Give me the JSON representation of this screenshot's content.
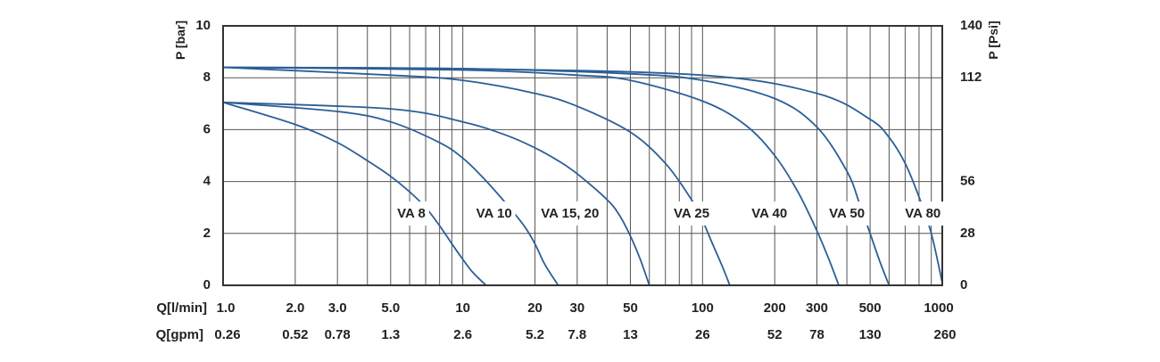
{
  "chart_data": {
    "type": "line",
    "x_scale": "log",
    "x_unit_label": "Q[l/min]",
    "x2_unit_label": "Q[gpm]",
    "y_label": "P [bar]",
    "y2_label": "P [Psi]",
    "xlim": [
      1,
      1000
    ],
    "ylim": [
      0,
      10
    ],
    "grid": true,
    "x_ticks": [
      {
        "value": 1,
        "label": "1.0",
        "label2": "0.26"
      },
      {
        "value": 2,
        "label": "2.0",
        "label2": "0.52"
      },
      {
        "value": 3,
        "label": "3.0",
        "label2": "0.78"
      },
      {
        "value": 5,
        "label": "5.0",
        "label2": "1.3"
      },
      {
        "value": 10,
        "label": "10",
        "label2": "2.6"
      },
      {
        "value": 20,
        "label": "20",
        "label2": "5.2"
      },
      {
        "value": 30,
        "label": "30",
        "label2": "7.8"
      },
      {
        "value": 50,
        "label": "50",
        "label2": "13"
      },
      {
        "value": 100,
        "label": "100",
        "label2": "26"
      },
      {
        "value": 200,
        "label": "200",
        "label2": "52"
      },
      {
        "value": 300,
        "label": "300",
        "label2": "78"
      },
      {
        "value": 500,
        "label": "500",
        "label2": "130"
      },
      {
        "value": 1000,
        "label": "1000",
        "label2": "260"
      }
    ],
    "y_ticks": [
      {
        "value": 0,
        "label": "0"
      },
      {
        "value": 2,
        "label": "2"
      },
      {
        "value": 4,
        "label": "4"
      },
      {
        "value": 6,
        "label": "6"
      },
      {
        "value": 8,
        "label": "8"
      },
      {
        "value": 10,
        "label": "10"
      }
    ],
    "y2_ticks": [
      {
        "value": 0,
        "label": "0"
      },
      {
        "value": 2,
        "label": "28"
      },
      {
        "value": 4,
        "label": "56"
      },
      {
        "value": 8,
        "label": "112"
      },
      {
        "value": 10,
        "label": "140"
      }
    ],
    "series": [
      {
        "name": "VA 8",
        "label_at": [
          6.1,
          2.75
        ],
        "x": [
          1,
          2,
          3,
          4,
          5,
          6,
          7,
          8,
          9,
          10,
          11,
          12.5
        ],
        "y": [
          7.05,
          6.2,
          5.5,
          4.8,
          4.2,
          3.6,
          3.0,
          2.3,
          1.6,
          1.0,
          0.5,
          0
        ]
      },
      {
        "name": "VA 10",
        "label_at": [
          13.5,
          2.75
        ],
        "x": [
          1,
          3,
          5,
          8,
          10,
          12,
          15,
          18,
          20,
          22,
          25
        ],
        "y": [
          7.05,
          6.7,
          6.3,
          5.5,
          4.9,
          4.2,
          3.2,
          2.3,
          1.6,
          0.8,
          0
        ]
      },
      {
        "name": "VA 15, 20",
        "label_at": [
          28,
          2.75
        ],
        "x": [
          1,
          5,
          10,
          15,
          20,
          25,
          30,
          40,
          45,
          50,
          55,
          60
        ],
        "y": [
          7.05,
          6.8,
          6.3,
          5.8,
          5.3,
          4.8,
          4.3,
          3.3,
          2.7,
          1.9,
          1.0,
          0
        ]
      },
      {
        "name": "VA 25",
        "label_at": [
          90,
          2.75
        ],
        "x": [
          1,
          5,
          10,
          20,
          30,
          50,
          70,
          90,
          100,
          110,
          120,
          130
        ],
        "y": [
          8.4,
          8.1,
          7.9,
          7.4,
          6.9,
          5.9,
          4.7,
          3.3,
          2.5,
          1.6,
          0.8,
          0
        ]
      },
      {
        "name": "VA 40",
        "label_at": [
          190,
          2.75
        ],
        "x": [
          1,
          10,
          30,
          50,
          100,
          150,
          200,
          250,
          300,
          340,
          370
        ],
        "y": [
          8.4,
          8.3,
          8.1,
          7.9,
          7.1,
          6.2,
          5.0,
          3.6,
          2.1,
          0.9,
          0
        ]
      },
      {
        "name": "VA 50",
        "label_at": [
          400,
          2.75
        ],
        "x": [
          1,
          10,
          50,
          100,
          200,
          300,
          400,
          450,
          500,
          550,
          600
        ],
        "y": [
          8.4,
          8.35,
          8.15,
          7.9,
          7.2,
          6.1,
          4.4,
          3.2,
          2.0,
          0.9,
          0
        ]
      },
      {
        "name": "VA 80",
        "label_at": [
          830,
          2.75
        ],
        "x": [
          1,
          10,
          100,
          300,
          500,
          600,
          700,
          800,
          900,
          1000
        ],
        "y": [
          8.4,
          8.35,
          8.1,
          7.4,
          6.4,
          5.7,
          4.7,
          3.4,
          2.0,
          0.1
        ]
      }
    ]
  }
}
